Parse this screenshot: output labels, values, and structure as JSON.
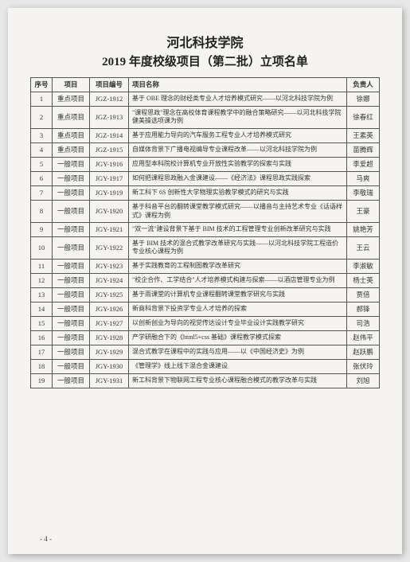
{
  "header": {
    "org": "河北科技学院",
    "title": "2019 年度校级项目（第二批）立项名单"
  },
  "columns": {
    "seq": "序号",
    "proj": "项目",
    "code": "项目编号",
    "name": "项目名称",
    "owner": "负责人"
  },
  "rows": [
    {
      "seq": "1",
      "proj": "重点项目",
      "code": "JGZ-1912",
      "name": "基于 OBE 理念的财经类专业人才培养模式研究——以河北科技学院为例",
      "owner": "徐娜"
    },
    {
      "seq": "2",
      "proj": "重点项目",
      "code": "JGZ-1913",
      "name": "\"课程思政\"理念在高校体育课程教学中的融合策略研究——以河北科技学院健美操选项课为例",
      "owner": "徐春红"
    },
    {
      "seq": "3",
      "proj": "重点项目",
      "code": "JGZ-1914",
      "name": "基于应用能力导向的汽车服务工程专业人才培养模式研究",
      "owner": "王素英"
    },
    {
      "seq": "4",
      "proj": "重点项目",
      "code": "JGZ-1915",
      "name": "自媒体背景下广播电视编导专业课程改革——以河北科技学院为例",
      "owner": "苗腾辉"
    },
    {
      "seq": "5",
      "proj": "一般项目",
      "code": "JGY-1916",
      "name": "应用型本科院校计算机专业开放性实验教学的探索与实践",
      "owner": "李爱超"
    },
    {
      "seq": "6",
      "proj": "一般项目",
      "code": "JGY-1917",
      "name": "如何把课程思政融入金课建设——《经济法》课程思政实践探索",
      "owner": "马爽"
    },
    {
      "seq": "7",
      "proj": "一般项目",
      "code": "JGY-1919",
      "name": "新工科下 6S 创新性大学物理实验教学模式的研究与实践",
      "owner": "李敬瑞"
    },
    {
      "seq": "8",
      "proj": "一般项目",
      "code": "JGY-1920",
      "name": "基于科音平台的翻转课堂教学模式研究——以播音与主持艺术专业《话语样式》课程为例",
      "owner": "王豪"
    },
    {
      "seq": "9",
      "proj": "一般项目",
      "code": "JGY-1921",
      "name": "\"双一流\"建设背景下基于 BIM 技术的工程管理专业创新改革研究与实践",
      "owner": "姚艳芳"
    },
    {
      "seq": "10",
      "proj": "一般项目",
      "code": "JGY-1922",
      "name": "基于 BIM 技术的混合式教学改革研究与实践——以河北科技学院工程造价专业核心课程为例",
      "owner": "王云"
    },
    {
      "seq": "11",
      "proj": "一般项目",
      "code": "JGY-1923",
      "name": "基于实践教育的工程制图教学改革研究",
      "owner": "李淑敏"
    },
    {
      "seq": "12",
      "proj": "一般项目",
      "code": "JGY-1924",
      "name": "\"校企合作、工学结合\"人才培养模式构建与探索——以酒店管理专业为例",
      "owner": "杨士英"
    },
    {
      "seq": "13",
      "proj": "一般项目",
      "code": "JGY-1925",
      "name": "基于雨课堂的计算机专业课程翻转课堂教学研究与实践",
      "owner": "贾倍"
    },
    {
      "seq": "14",
      "proj": "一般项目",
      "code": "JGY-1926",
      "name": "新商科背景下投资学专业人才培养的探索",
      "owner": "郝锋"
    },
    {
      "seq": "15",
      "proj": "一般项目",
      "code": "JGY-1927",
      "name": "以创新创业为导向的视觉传达设计专业毕业设计实践教学研究",
      "owner": "司浩"
    },
    {
      "seq": "16",
      "proj": "一般项目",
      "code": "JGY-1928",
      "name": "产学研融合下的《html5+css 基础》课程教学模式探索",
      "owner": "赵伟平"
    },
    {
      "seq": "17",
      "proj": "一般项目",
      "code": "JGY-1929",
      "name": "混合式教学在课程中的实践与应用——以《中国经济史》为例",
      "owner": "赵跃鹏"
    },
    {
      "seq": "18",
      "proj": "一般项目",
      "code": "JGY-1930",
      "name": "《管理学》线上线下混合金课建设",
      "owner": "张伏玲"
    },
    {
      "seq": "19",
      "proj": "一般项目",
      "code": "JGY-1931",
      "name": "新工科背景下物联网工程专业核心课程融合模式的教学改革与实践",
      "owner": "刘旭"
    }
  ],
  "pageNum": "- 4 -"
}
